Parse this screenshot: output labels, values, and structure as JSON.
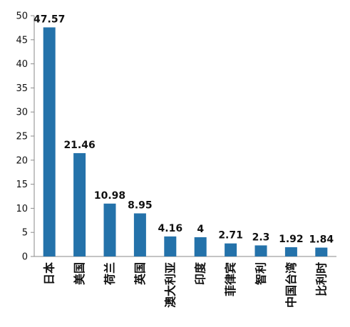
{
  "chart_data": {
    "type": "bar",
    "title": "",
    "xlabel": "",
    "ylabel": "",
    "categories": [
      "日本",
      "美国",
      "荷兰",
      "英国",
      "澳大利亚",
      "印度",
      "菲律宾",
      "智利",
      "中国台湾",
      "比利时"
    ],
    "values": [
      47.57,
      21.46,
      10.98,
      8.95,
      4.16,
      4,
      2.71,
      2.3,
      1.92,
      1.84
    ],
    "data_labels": [
      "47.57",
      "21.46",
      "10.98",
      "8.95",
      "4.16",
      "4",
      "2.71",
      "2.3",
      "1.92",
      "1.84"
    ],
    "ylim": [
      0,
      50
    ],
    "yticks": [
      "0",
      "5",
      "10",
      "15",
      "20",
      "25",
      "30",
      "35",
      "40",
      "45",
      "50"
    ],
    "bar_color": "#2472AA",
    "grid": false,
    "legend": "none"
  }
}
